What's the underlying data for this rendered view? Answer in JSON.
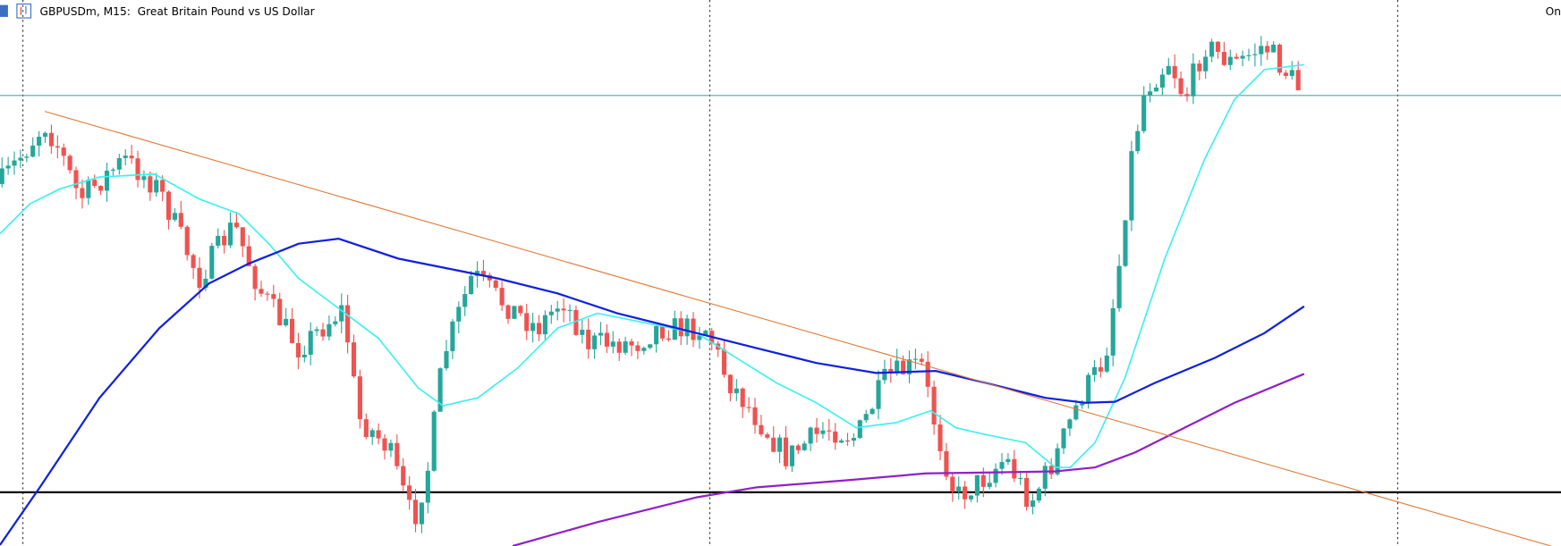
{
  "header": {
    "title": "GBPUSDm, M15:  Great Britain Pound vs US Dollar",
    "corner": "On"
  }
}
